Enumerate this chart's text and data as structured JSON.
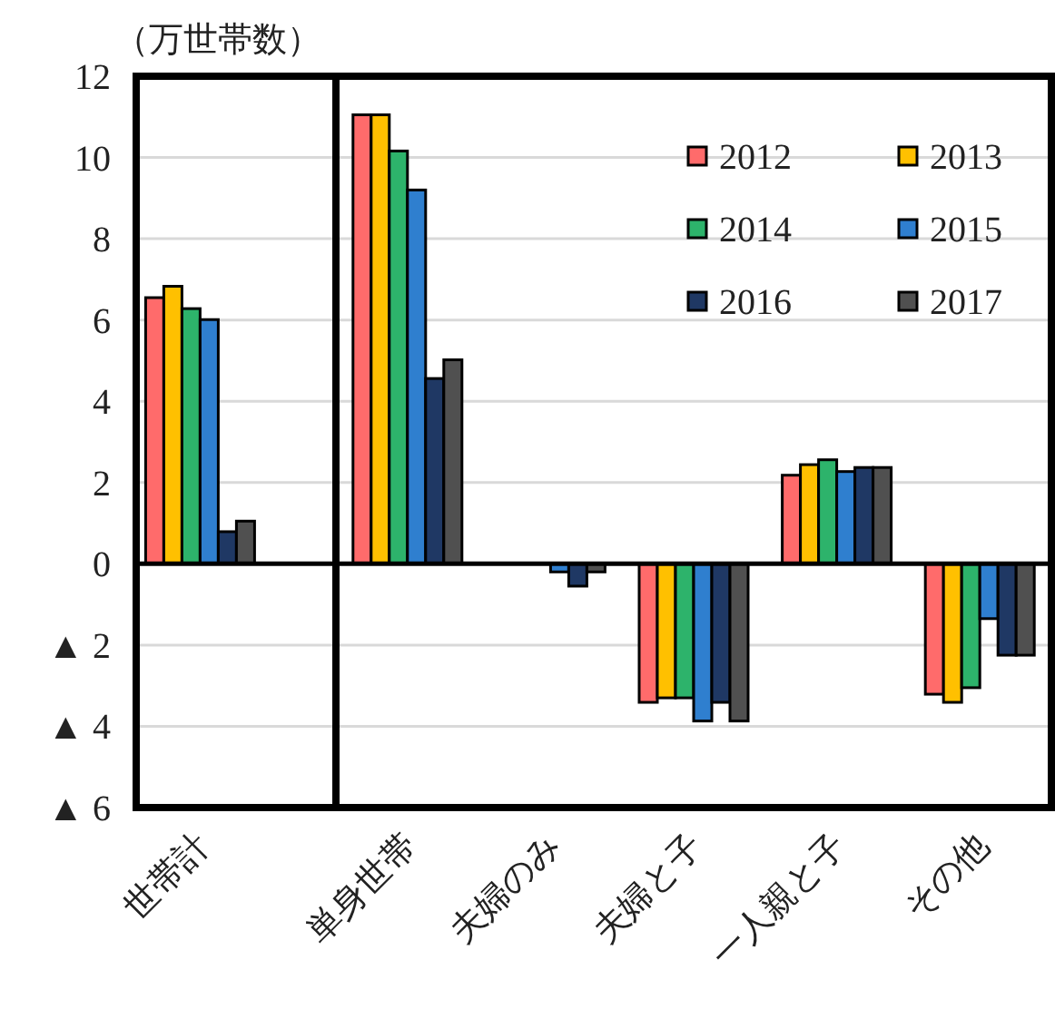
{
  "chart_data": [
    {
      "type": "bar",
      "ylabel": "（万世帯数）",
      "categories": [
        "世帯計"
      ],
      "ylim": [
        -6,
        12
      ],
      "yticks": [
        {
          "value": -6,
          "label": "▲ 6"
        },
        {
          "value": -4,
          "label": "▲ 4"
        },
        {
          "value": -2,
          "label": "▲ 2"
        },
        0,
        2,
        4,
        6,
        8,
        10,
        12
      ],
      "grid": "y",
      "series": [
        {
          "color": "#ff6b6b",
          "values": [
            6.55
          ]
        },
        {
          "color": "#ffc000",
          "values": [
            6.83
          ]
        },
        {
          "color": "#2db36b",
          "values": [
            6.28
          ]
        },
        {
          "color": "#2f7fcf",
          "values": [
            6.01
          ]
        },
        {
          "color": "#1f3864",
          "values": [
            0.79
          ]
        },
        {
          "color": "#505050",
          "values": [
            1.05
          ]
        }
      ]
    },
    {
      "type": "bar",
      "categories": [
        "単身世帯",
        "夫婦のみ",
        "夫婦と子",
        "一人親と子",
        "その他"
      ],
      "ylim": [
        -6,
        12
      ],
      "yticks": [
        {
          "value": -6,
          "label": null
        },
        {
          "value": -4,
          "label": null
        },
        {
          "value": -2,
          "label": null
        },
        {
          "value": 0,
          "label": null
        },
        {
          "value": 2,
          "label": null
        },
        {
          "value": 4,
          "label": null
        },
        {
          "value": 6,
          "label": null
        },
        {
          "value": 8,
          "label": null
        },
        {
          "value": 10,
          "label": null
        },
        {
          "value": 12,
          "label": null
        }
      ],
      "grid": "y",
      "tick_labels": "x",
      "legend": "top right",
      "series": [
        {
          "name": "2012",
          "color": "#ff6b6b",
          "values": [
            11.05,
            null,
            -3.41,
            2.18,
            -3.21
          ]
        },
        {
          "name": "2013",
          "color": "#ffc000",
          "values": [
            11.05,
            null,
            -3.3,
            2.44,
            -3.41
          ]
        },
        {
          "name": "2014",
          "color": "#2db36b",
          "values": [
            10.16,
            null,
            -3.3,
            2.56,
            -3.05
          ]
        },
        {
          "name": "2015",
          "color": "#2f7fcf",
          "values": [
            9.2,
            -0.2,
            -3.87,
            2.27,
            -1.35
          ]
        },
        {
          "name": "2016",
          "color": "#1f3864",
          "values": [
            4.56,
            -0.55,
            -3.41,
            2.37,
            -2.25
          ]
        },
        {
          "name": "2017",
          "color": "#505050",
          "values": [
            5.02,
            -0.2,
            -3.87,
            2.37,
            -2.25
          ]
        }
      ]
    }
  ]
}
